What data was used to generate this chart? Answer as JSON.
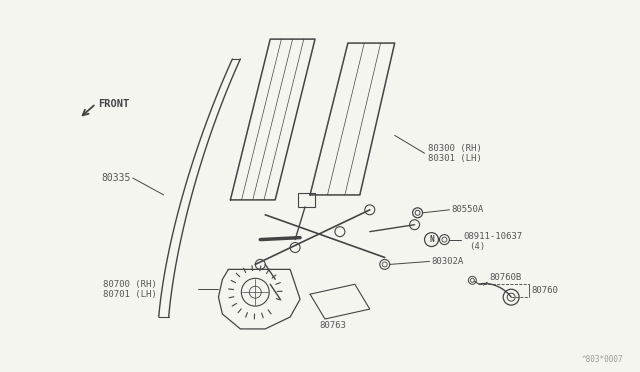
{
  "bg_color": "#f5f5f0",
  "line_color": "#444444",
  "text_color": "#555555",
  "fig_width": 6.4,
  "fig_height": 3.72,
  "watermark": "^803*0007",
  "labels": {
    "front_arrow": "FRONT",
    "p80300": "80300 (RH)",
    "p80301": "80301 (LH)",
    "p80335": "80335",
    "p80550A": "80550A",
    "p08911": "08911-10637",
    "p08911b": "(4)",
    "p80302A": "80302A",
    "p80700": "80700 (RH)",
    "p80701": "80701 (LH)",
    "p80763": "80763",
    "p80760B": "80760B",
    "p80760": "80760"
  }
}
